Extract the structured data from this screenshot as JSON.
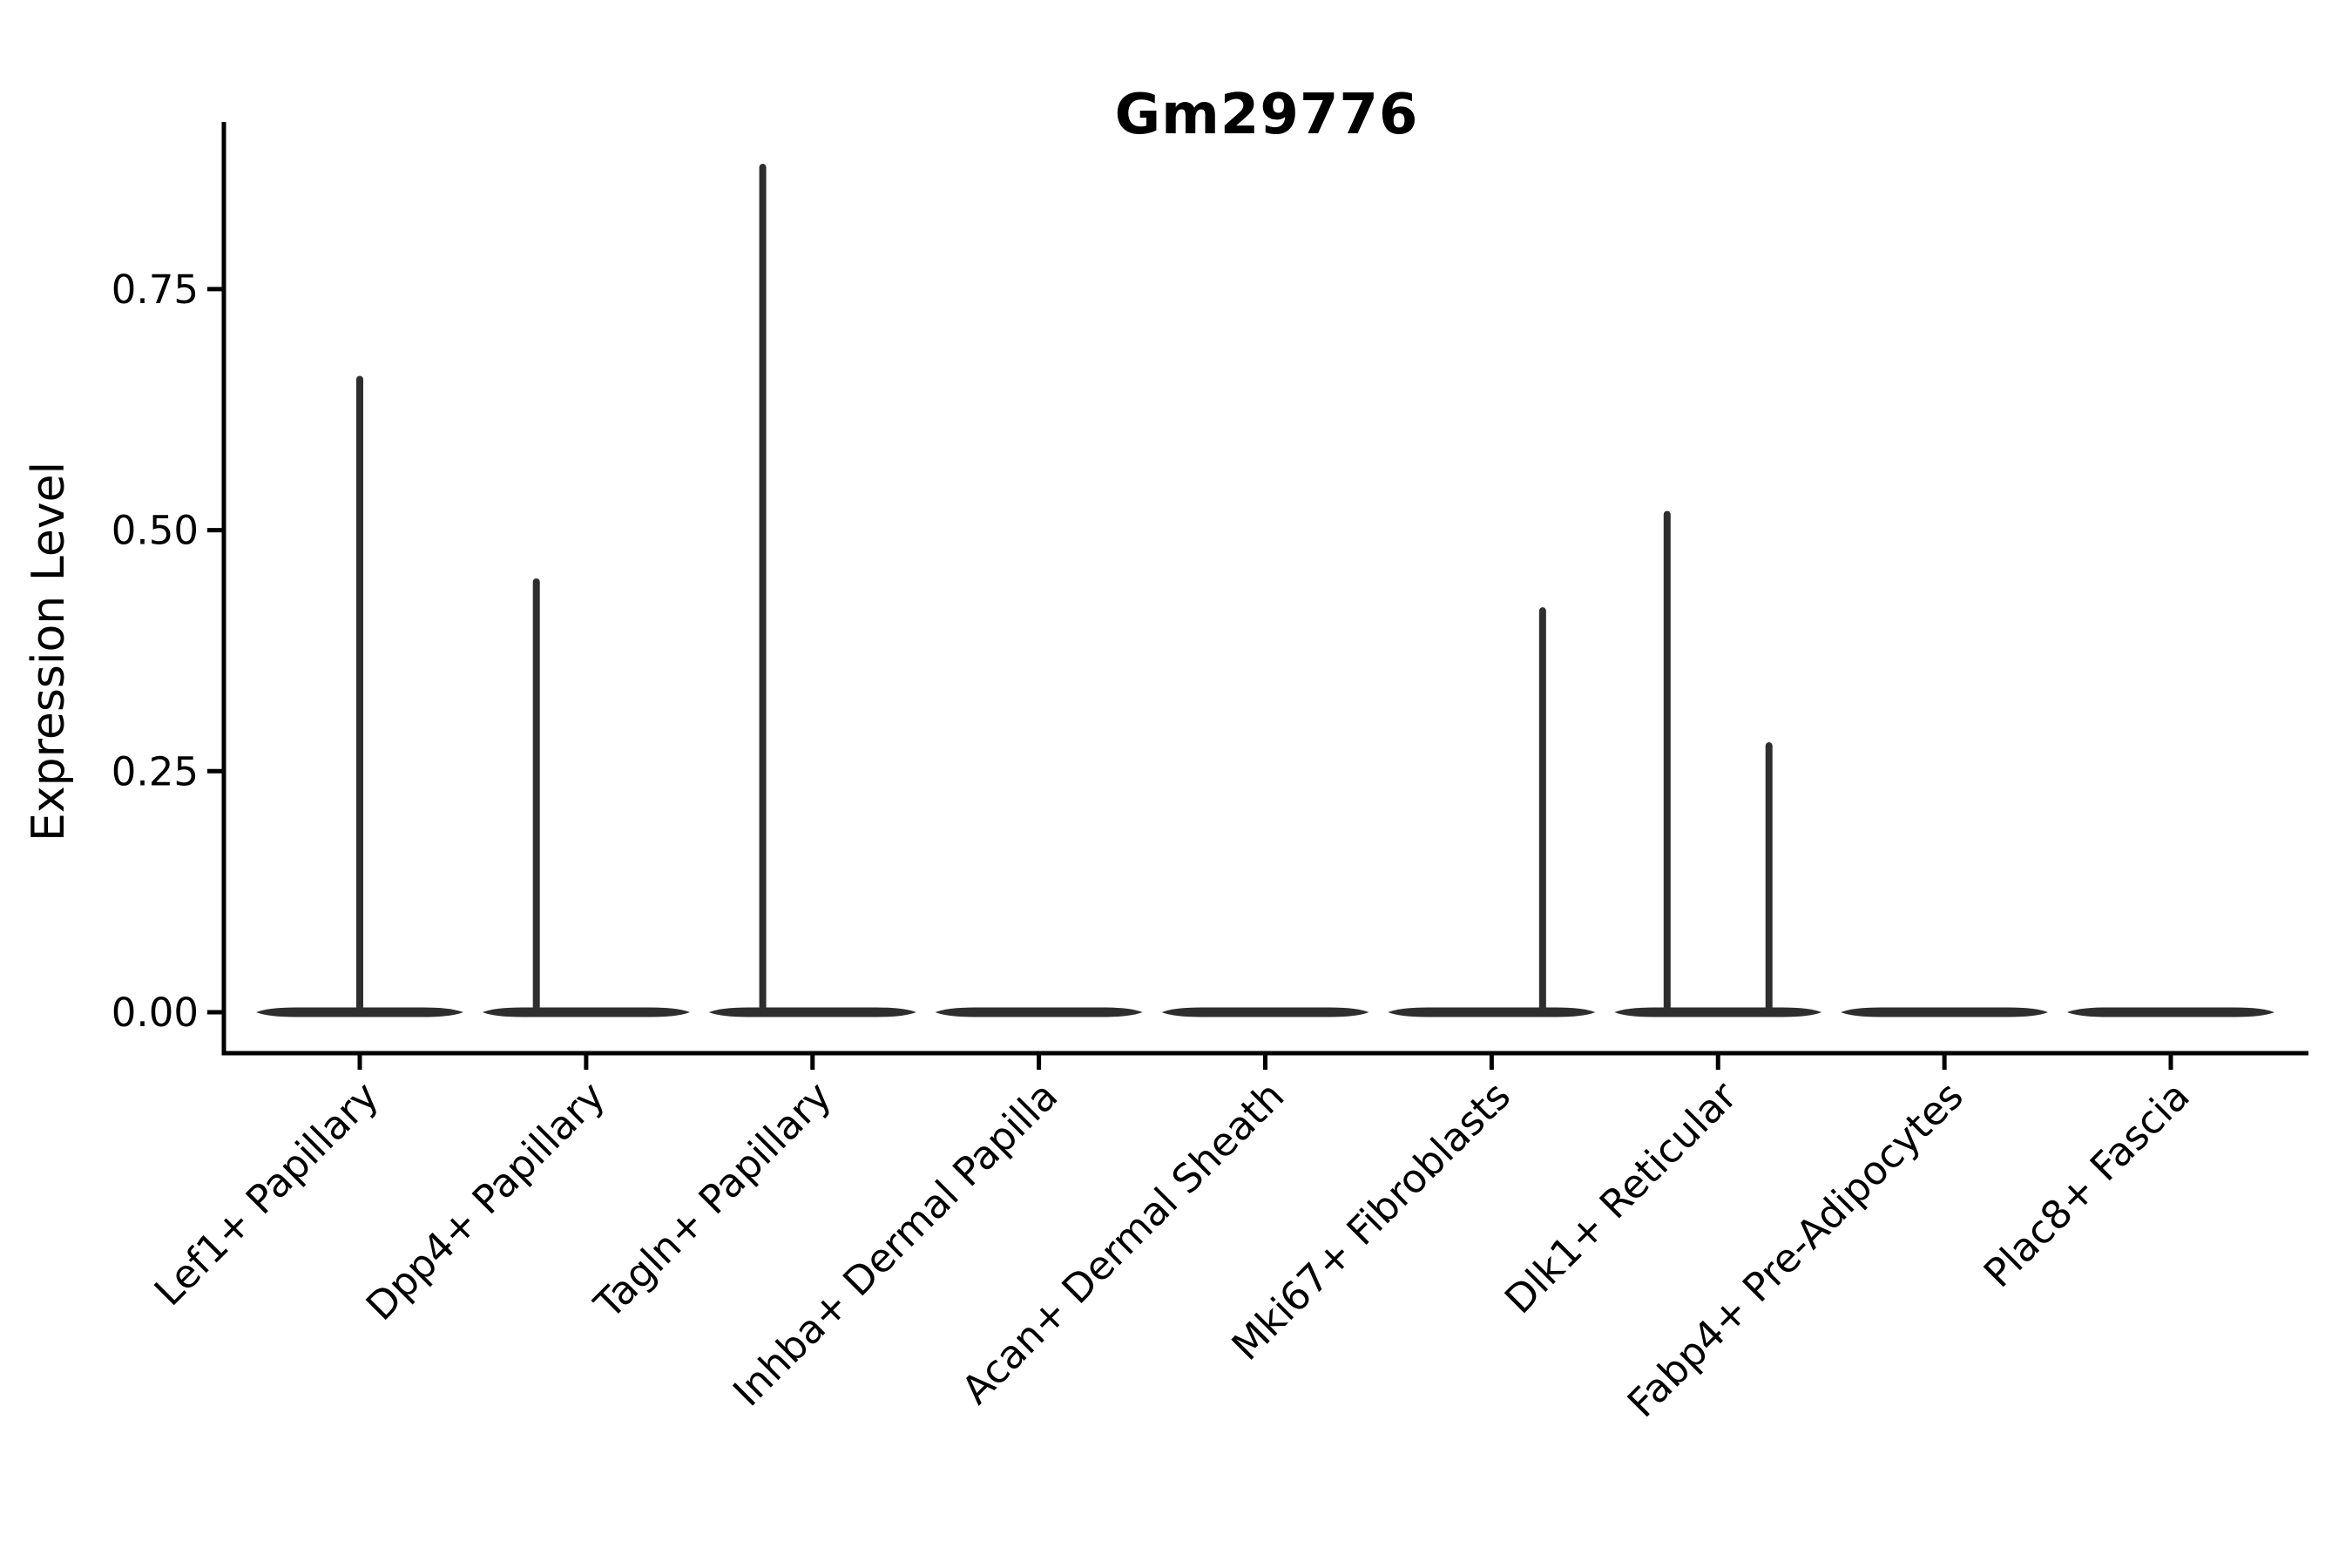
{
  "figure": {
    "title": "Gm29776",
    "ylabel": "Expression Level"
  },
  "chart_data": {
    "type": "violin",
    "title": "Gm29776",
    "xlabel": "",
    "ylabel": "Expression Level",
    "y_tick_labels": [
      "0.00",
      "0.25",
      "0.50",
      "0.75"
    ],
    "y_tick_values": [
      0.0,
      0.25,
      0.5,
      0.75
    ],
    "ylim": [
      -0.042,
      0.923
    ],
    "grid": false,
    "legend": "none",
    "ink_color": "#000000",
    "violin_color": "#2e2e2e",
    "categories": [
      "Lef1+ Papillary",
      "Dpp4+ Papillary",
      "Tagln+ Papillary",
      "Inhba+ Dermal Papilla",
      "Acan+ Dermal Sheath",
      "Mki67+ Fibroblasts",
      "Dlk1+ Reticular",
      "Fabp4+ Pre-Adipocytes",
      "Plac8+ Fascia"
    ],
    "violins": [
      {
        "category": "Lef1+ Papillary",
        "baseline_value": 0,
        "spikes": [
          {
            "offset": 0.0,
            "value": 0.66
          }
        ]
      },
      {
        "category": "Dpp4+ Papillary",
        "baseline_value": 0,
        "spikes": [
          {
            "offset": -0.22,
            "value": 0.45
          }
        ]
      },
      {
        "category": "Tagln+ Papillary",
        "baseline_value": 0,
        "spikes": [
          {
            "offset": -0.22,
            "value": 0.88
          }
        ]
      },
      {
        "category": "Inhba+ Dermal Papilla",
        "baseline_value": 0,
        "spikes": []
      },
      {
        "category": "Acan+ Dermal Sheath",
        "baseline_value": 0,
        "spikes": []
      },
      {
        "category": "Mki67+ Fibroblasts",
        "baseline_value": 0,
        "spikes": [
          {
            "offset": 0.225,
            "value": 0.42
          }
        ]
      },
      {
        "category": "Dlk1+ Reticular",
        "baseline_value": 0,
        "spikes": [
          {
            "offset": -0.225,
            "value": 0.52
          },
          {
            "offset": 0.225,
            "value": 0.28
          }
        ]
      },
      {
        "category": "Fabp4+ Pre-Adipocytes",
        "baseline_value": 0,
        "spikes": []
      },
      {
        "category": "Plac8+ Fascia",
        "baseline_value": 0,
        "spikes": []
      }
    ]
  }
}
